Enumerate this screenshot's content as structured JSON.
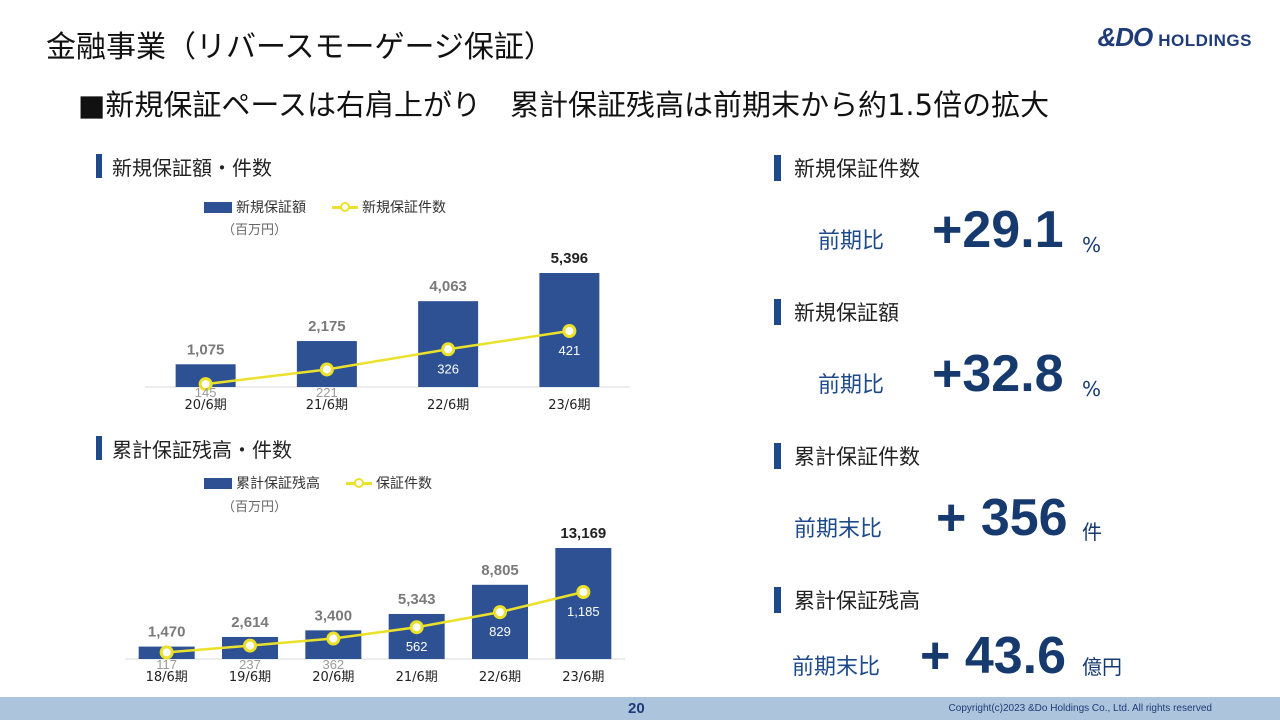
{
  "page_title": "金融事業（リバースモーゲージ保証）",
  "logo": {
    "mark": "&DO",
    "sub": "HOLDINGS"
  },
  "headline": "■新規保証ペースは右肩上がり　累計保証残高は前期末から約1.5倍の拡大",
  "chart_data": [
    {
      "type": "bar",
      "title": "新規保証額・件数",
      "unit": "（百万円）",
      "categories": [
        "20/6期",
        "21/6期",
        "22/6期",
        "23/6期"
      ],
      "series": [
        {
          "name": "新規保証額",
          "type": "bar",
          "color": "#2e5194",
          "values": [
            1075,
            2175,
            4063,
            5396
          ],
          "labels": [
            "1,075",
            "2,175",
            "4,063",
            "5,396"
          ]
        },
        {
          "name": "新規保証件数",
          "type": "line",
          "color": "#ece12a",
          "values": [
            145,
            221,
            326,
            421
          ],
          "labels": [
            "145",
            "221",
            "326",
            "421"
          ]
        }
      ]
    },
    {
      "type": "bar",
      "title": "累計保証残高・件数",
      "unit": "（百万円）",
      "categories": [
        "18/6期",
        "19/6期",
        "20/6期",
        "21/6期",
        "22/6期",
        "23/6期"
      ],
      "series": [
        {
          "name": "累計保証残高",
          "type": "bar",
          "color": "#2e5194",
          "values": [
            1470,
            2614,
            3400,
            5343,
            8805,
            13169
          ],
          "labels": [
            "1,470",
            "2,614",
            "3,400",
            "5,343",
            "8,805",
            "13,169"
          ]
        },
        {
          "name": "保証件数",
          "type": "line",
          "color": "#ece12a",
          "values": [
            117,
            237,
            362,
            562,
            829,
            1185
          ],
          "labels": [
            "117",
            "237",
            "362",
            "562",
            "829",
            "1,185"
          ]
        }
      ]
    }
  ],
  "kpis": [
    {
      "title": "新規保証件数",
      "label": "前期比",
      "value": "+29.1",
      "unit": "%"
    },
    {
      "title": "新規保証額",
      "label": "前期比",
      "value": "+32.8",
      "unit": "%"
    },
    {
      "title": "累計保証件数",
      "label": "前期末比",
      "value": "+ 356",
      "unit": "件"
    },
    {
      "title": "累計保証残高",
      "label": "前期末比",
      "value": "+ 43.6",
      "unit": "億円"
    }
  ],
  "footer": {
    "page_number": "20",
    "copyright": "Copyright(c)2023 &Do Holdings Co., Ltd. All rights reserved"
  },
  "colors": {
    "accent": "#1e4a8c",
    "bar": "#2e5194",
    "line": "#ece12a",
    "footer": "#adc4dd"
  }
}
